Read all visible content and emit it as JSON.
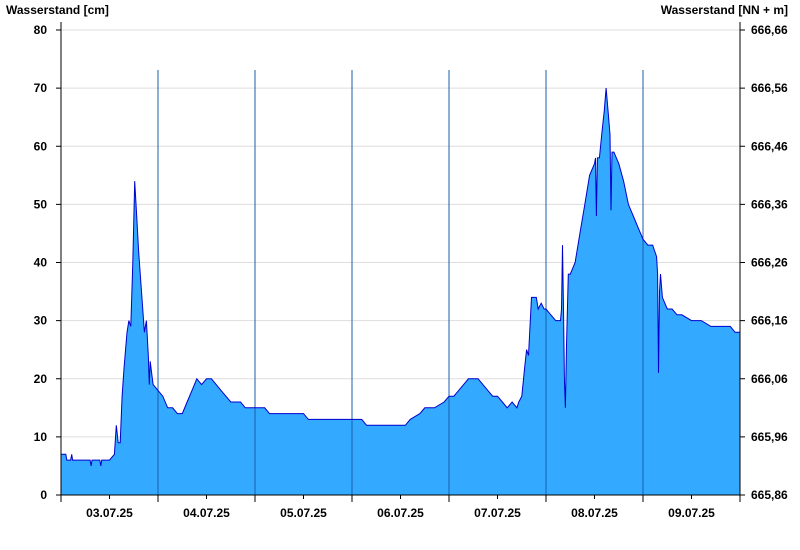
{
  "chart_data": {
    "type": "area",
    "title": "",
    "ylabel_left": "Wasserstand [cm]",
    "ylabel_right": "Wasserstand [NN + m]",
    "ylim_left": [
      0,
      80
    ],
    "yticks_left": [
      "0",
      "10",
      "20",
      "30",
      "40",
      "50",
      "60",
      "70",
      "80"
    ],
    "ylim_right": [
      665.86,
      666.66
    ],
    "yticks_right": [
      "665,86",
      "665,96",
      "666,06",
      "666,16",
      "666,26",
      "666,36",
      "666,46",
      "666,56",
      "666,66"
    ],
    "xlim_days": [
      0,
      7
    ],
    "x_tick_labels": [
      "03.07.25",
      "04.07.25",
      "05.07.25",
      "06.07.25",
      "07.07.25",
      "08.07.25",
      "09.07.25"
    ],
    "grid": true,
    "colors": {
      "fill": "#33aaff",
      "line": "#0000cc",
      "day_separator": "#1a5fa8",
      "grid": "#dddddd"
    },
    "series": [
      {
        "values": [
          [
            0.0,
            7
          ],
          [
            0.05,
            7
          ],
          [
            0.06,
            6
          ],
          [
            0.1,
            6
          ],
          [
            0.11,
            7
          ],
          [
            0.12,
            6
          ],
          [
            0.3,
            6
          ],
          [
            0.31,
            5
          ],
          [
            0.32,
            6
          ],
          [
            0.4,
            6
          ],
          [
            0.41,
            5
          ],
          [
            0.42,
            6
          ],
          [
            0.5,
            6
          ],
          [
            0.55,
            7
          ],
          [
            0.57,
            12
          ],
          [
            0.59,
            9
          ],
          [
            0.61,
            9
          ],
          [
            0.63,
            17
          ],
          [
            0.65,
            22
          ],
          [
            0.68,
            28
          ],
          [
            0.7,
            30
          ],
          [
            0.72,
            29
          ],
          [
            0.74,
            40
          ],
          [
            0.76,
            54
          ],
          [
            0.78,
            48
          ],
          [
            0.8,
            42
          ],
          [
            0.83,
            35
          ],
          [
            0.86,
            28
          ],
          [
            0.88,
            30
          ],
          [
            0.9,
            24
          ],
          [
            0.91,
            19
          ],
          [
            0.92,
            23
          ],
          [
            0.95,
            19
          ],
          [
            1.0,
            18
          ],
          [
            1.05,
            17
          ],
          [
            1.1,
            15
          ],
          [
            1.15,
            15
          ],
          [
            1.2,
            14
          ],
          [
            1.25,
            14
          ],
          [
            1.3,
            16
          ],
          [
            1.35,
            18
          ],
          [
            1.4,
            20
          ],
          [
            1.45,
            19
          ],
          [
            1.5,
            20
          ],
          [
            1.55,
            20
          ],
          [
            1.6,
            19
          ],
          [
            1.65,
            18
          ],
          [
            1.7,
            17
          ],
          [
            1.75,
            16
          ],
          [
            1.85,
            16
          ],
          [
            1.9,
            15
          ],
          [
            2.0,
            15
          ],
          [
            2.1,
            15
          ],
          [
            2.15,
            14
          ],
          [
            2.5,
            14
          ],
          [
            2.55,
            13
          ],
          [
            3.0,
            13
          ],
          [
            3.1,
            13
          ],
          [
            3.15,
            12
          ],
          [
            3.3,
            12
          ],
          [
            3.5,
            12
          ],
          [
            3.55,
            12
          ],
          [
            3.6,
            13
          ],
          [
            3.7,
            14
          ],
          [
            3.75,
            15
          ],
          [
            3.85,
            15
          ],
          [
            3.95,
            16
          ],
          [
            4.0,
            17
          ],
          [
            4.05,
            17
          ],
          [
            4.1,
            18
          ],
          [
            4.15,
            19
          ],
          [
            4.2,
            20
          ],
          [
            4.3,
            20
          ],
          [
            4.35,
            19
          ],
          [
            4.4,
            18
          ],
          [
            4.45,
            17
          ],
          [
            4.5,
            17
          ],
          [
            4.55,
            16
          ],
          [
            4.6,
            15
          ],
          [
            4.65,
            16
          ],
          [
            4.7,
            15
          ],
          [
            4.72,
            16
          ],
          [
            4.75,
            17
          ],
          [
            4.78,
            22
          ],
          [
            4.8,
            25
          ],
          [
            4.82,
            24
          ],
          [
            4.85,
            34
          ],
          [
            4.9,
            34
          ],
          [
            4.92,
            32
          ],
          [
            4.95,
            33
          ],
          [
            4.98,
            32
          ],
          [
            5.0,
            32
          ],
          [
            5.05,
            31
          ],
          [
            5.1,
            30
          ],
          [
            5.15,
            30
          ],
          [
            5.16,
            32
          ],
          [
            5.17,
            43
          ],
          [
            5.18,
            32
          ],
          [
            5.19,
            20
          ],
          [
            5.2,
            15
          ],
          [
            5.21,
            25
          ],
          [
            5.23,
            38
          ],
          [
            5.25,
            38
          ],
          [
            5.3,
            40
          ],
          [
            5.35,
            45
          ],
          [
            5.4,
            50
          ],
          [
            5.45,
            55
          ],
          [
            5.5,
            57
          ],
          [
            5.51,
            58
          ],
          [
            5.52,
            48
          ],
          [
            5.53,
            58
          ],
          [
            5.55,
            58
          ],
          [
            5.58,
            63
          ],
          [
            5.6,
            66
          ],
          [
            5.62,
            70
          ],
          [
            5.64,
            66
          ],
          [
            5.66,
            62
          ],
          [
            5.67,
            49
          ],
          [
            5.68,
            59
          ],
          [
            5.7,
            59
          ],
          [
            5.75,
            57
          ],
          [
            5.8,
            54
          ],
          [
            5.85,
            50
          ],
          [
            5.9,
            48
          ],
          [
            5.95,
            46
          ],
          [
            6.0,
            44
          ],
          [
            6.05,
            43
          ],
          [
            6.1,
            43
          ],
          [
            6.12,
            42
          ],
          [
            6.14,
            41
          ],
          [
            6.15,
            38
          ],
          [
            6.16,
            21
          ],
          [
            6.17,
            35
          ],
          [
            6.18,
            38
          ],
          [
            6.2,
            34
          ],
          [
            6.25,
            32
          ],
          [
            6.3,
            32
          ],
          [
            6.35,
            31
          ],
          [
            6.4,
            31
          ],
          [
            6.5,
            30
          ],
          [
            6.6,
            30
          ],
          [
            6.7,
            29
          ],
          [
            6.8,
            29
          ],
          [
            6.9,
            29
          ],
          [
            6.95,
            28
          ],
          [
            7.0,
            28
          ]
        ]
      }
    ]
  }
}
